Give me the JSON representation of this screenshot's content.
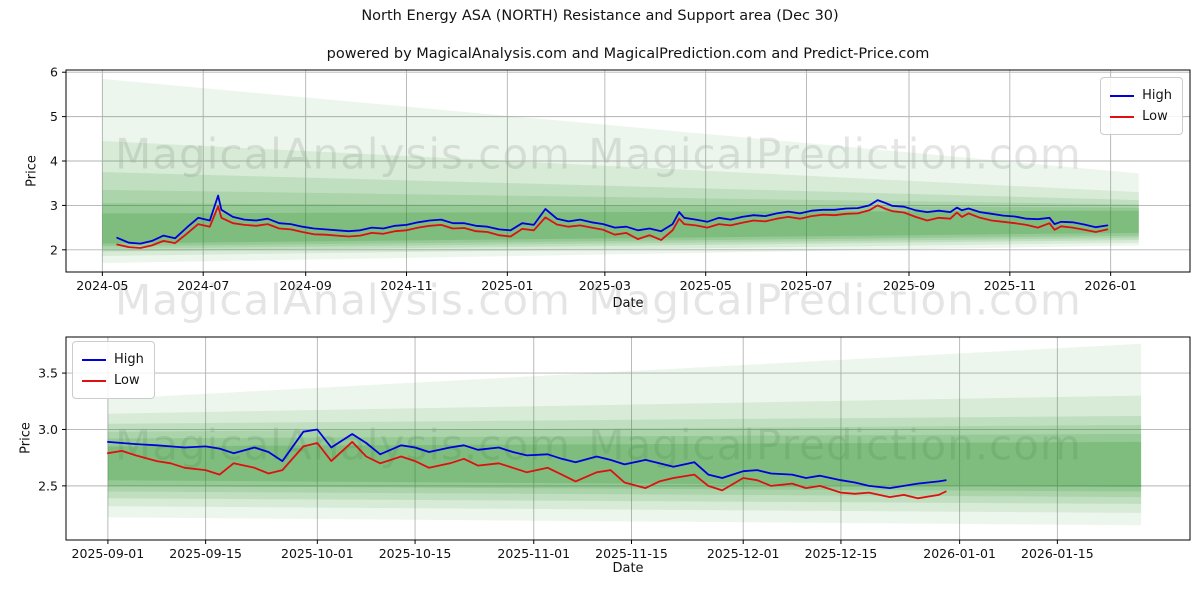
{
  "title": "North Energy ASA (NORTH) Resistance and Support area (Dec 30)",
  "subtitle": "powered by MagicalAnalysis.com and MagicalPrediction.com and Predict-Price.com",
  "watermarks": {
    "left": "MagicalAnalysis.com",
    "right": "MagicalPrediction.com"
  },
  "colors": {
    "high": "#0000dd",
    "low": "#dd1111",
    "band": "#1e8c1e",
    "grid": "#b3b3b3",
    "spine": "#000000",
    "tick_text": "#111111"
  },
  "chart_data": [
    {
      "type": "line",
      "xlabel": "Date",
      "ylabel": "Price",
      "grid": true,
      "legend_loc": "upper right",
      "xlim": [
        "2024-04-09",
        "2026-02-18"
      ],
      "ylim": [
        1.5,
        6.05
      ],
      "x_ticks": [
        {
          "v": "2024-05-01",
          "label": "2024-05"
        },
        {
          "v": "2024-07-01",
          "label": "2024-07"
        },
        {
          "v": "2024-09-01",
          "label": "2024-09"
        },
        {
          "v": "2024-11-01",
          "label": "2024-11"
        },
        {
          "v": "2025-01-01",
          "label": "2025-01"
        },
        {
          "v": "2025-03-01",
          "label": "2025-03"
        },
        {
          "v": "2025-05-01",
          "label": "2025-05"
        },
        {
          "v": "2025-07-01",
          "label": "2025-07"
        },
        {
          "v": "2025-09-01",
          "label": "2025-09"
        },
        {
          "v": "2025-11-01",
          "label": "2025-11"
        },
        {
          "v": "2026-01-01",
          "label": "2026-01"
        }
      ],
      "y_ticks": [
        {
          "v": 2,
          "label": "2"
        },
        {
          "v": 3,
          "label": "3"
        },
        {
          "v": 4,
          "label": "4"
        },
        {
          "v": 5,
          "label": "5"
        },
        {
          "v": 6,
          "label": "6"
        }
      ],
      "dates": [
        "2024-05-10",
        "2024-05-17",
        "2024-05-24",
        "2024-05-31",
        "2024-06-07",
        "2024-06-14",
        "2024-06-21",
        "2024-06-28",
        "2024-07-05",
        "2024-07-10",
        "2024-07-12",
        "2024-07-19",
        "2024-07-26",
        "2024-08-02",
        "2024-08-09",
        "2024-08-16",
        "2024-08-23",
        "2024-08-30",
        "2024-09-06",
        "2024-09-13",
        "2024-09-20",
        "2024-09-27",
        "2024-10-04",
        "2024-10-11",
        "2024-10-18",
        "2024-10-25",
        "2024-11-01",
        "2024-11-08",
        "2024-11-15",
        "2024-11-22",
        "2024-11-29",
        "2024-12-06",
        "2024-12-13",
        "2024-12-20",
        "2024-12-27",
        "2025-01-03",
        "2025-01-10",
        "2025-01-17",
        "2025-01-24",
        "2025-01-31",
        "2025-02-07",
        "2025-02-14",
        "2025-02-21",
        "2025-02-28",
        "2025-03-07",
        "2025-03-14",
        "2025-03-21",
        "2025-03-28",
        "2025-04-04",
        "2025-04-11",
        "2025-04-15",
        "2025-04-18",
        "2025-04-25",
        "2025-05-02",
        "2025-05-09",
        "2025-05-16",
        "2025-05-23",
        "2025-05-30",
        "2025-06-06",
        "2025-06-13",
        "2025-06-20",
        "2025-06-27",
        "2025-07-04",
        "2025-07-11",
        "2025-07-18",
        "2025-07-25",
        "2025-08-01",
        "2025-08-08",
        "2025-08-13",
        "2025-08-18",
        "2025-08-22",
        "2025-08-29",
        "2025-09-05",
        "2025-09-12",
        "2025-09-19",
        "2025-09-26",
        "2025-09-30",
        "2025-10-03",
        "2025-10-07",
        "2025-10-14",
        "2025-10-21",
        "2025-10-28",
        "2025-11-04",
        "2025-11-11",
        "2025-11-18",
        "2025-11-25",
        "2025-11-28",
        "2025-12-02",
        "2025-12-09",
        "2025-12-16",
        "2025-12-23",
        "2025-12-30"
      ],
      "series": [
        {
          "name": "High",
          "color_key": "high",
          "values": [
            2.27,
            2.16,
            2.14,
            2.2,
            2.32,
            2.26,
            2.5,
            2.72,
            2.66,
            3.22,
            2.9,
            2.74,
            2.68,
            2.66,
            2.7,
            2.6,
            2.58,
            2.52,
            2.48,
            2.46,
            2.44,
            2.42,
            2.44,
            2.5,
            2.48,
            2.54,
            2.56,
            2.62,
            2.66,
            2.68,
            2.6,
            2.6,
            2.54,
            2.52,
            2.46,
            2.44,
            2.6,
            2.56,
            2.92,
            2.7,
            2.64,
            2.68,
            2.62,
            2.58,
            2.5,
            2.52,
            2.44,
            2.48,
            2.42,
            2.58,
            2.85,
            2.72,
            2.68,
            2.63,
            2.72,
            2.68,
            2.74,
            2.78,
            2.76,
            2.82,
            2.86,
            2.82,
            2.88,
            2.9,
            2.9,
            2.93,
            2.94,
            3.0,
            3.12,
            3.05,
            2.99,
            2.97,
            2.89,
            2.85,
            2.88,
            2.85,
            2.95,
            2.89,
            2.93,
            2.85,
            2.81,
            2.77,
            2.75,
            2.7,
            2.69,
            2.72,
            2.58,
            2.63,
            2.62,
            2.57,
            2.51,
            2.55
          ]
        },
        {
          "name": "Low",
          "color_key": "low",
          "values": [
            2.12,
            2.06,
            2.04,
            2.1,
            2.2,
            2.15,
            2.36,
            2.58,
            2.52,
            2.98,
            2.72,
            2.6,
            2.56,
            2.54,
            2.58,
            2.48,
            2.46,
            2.4,
            2.35,
            2.34,
            2.32,
            2.3,
            2.32,
            2.38,
            2.36,
            2.42,
            2.44,
            2.5,
            2.54,
            2.56,
            2.48,
            2.49,
            2.42,
            2.4,
            2.33,
            2.3,
            2.47,
            2.44,
            2.73,
            2.57,
            2.52,
            2.55,
            2.5,
            2.45,
            2.34,
            2.38,
            2.24,
            2.33,
            2.22,
            2.44,
            2.7,
            2.58,
            2.55,
            2.5,
            2.58,
            2.55,
            2.61,
            2.66,
            2.64,
            2.7,
            2.74,
            2.7,
            2.76,
            2.79,
            2.78,
            2.81,
            2.82,
            2.89,
            3.0,
            2.92,
            2.87,
            2.84,
            2.74,
            2.66,
            2.72,
            2.7,
            2.84,
            2.74,
            2.82,
            2.72,
            2.66,
            2.63,
            2.6,
            2.56,
            2.5,
            2.6,
            2.45,
            2.53,
            2.5,
            2.45,
            2.4,
            2.46
          ]
        }
      ],
      "bands": [
        {
          "x0": "2024-05-01",
          "x1": "2026-01-18",
          "top0": 5.85,
          "bot0": 1.7,
          "top1": 3.72,
          "bot1": 2.1,
          "alpha": 0.08
        },
        {
          "x0": "2024-05-01",
          "x1": "2026-01-18",
          "top0": 4.45,
          "bot0": 1.86,
          "top1": 3.3,
          "bot1": 2.16,
          "alpha": 0.1
        },
        {
          "x0": "2024-05-01",
          "x1": "2026-01-18",
          "top0": 3.75,
          "bot0": 1.96,
          "top1": 3.12,
          "bot1": 2.22,
          "alpha": 0.12
        },
        {
          "x0": "2024-05-01",
          "x1": "2026-01-18",
          "top0": 3.35,
          "bot0": 2.02,
          "top1": 3.02,
          "bot1": 2.27,
          "alpha": 0.13
        },
        {
          "x0": "2024-05-01",
          "x1": "2026-01-18",
          "top0": 3.05,
          "bot0": 2.08,
          "top1": 2.95,
          "bot1": 2.32,
          "alpha": 0.15
        },
        {
          "x0": "2024-05-01",
          "x1": "2026-01-18",
          "top0": 2.82,
          "bot0": 2.14,
          "top1": 2.88,
          "bot1": 2.38,
          "alpha": 0.18
        }
      ]
    },
    {
      "type": "line",
      "xlabel": "Date",
      "ylabel": "Price",
      "grid": true,
      "legend_loc": "upper left",
      "xlim": [
        "2025-08-26",
        "2026-02-03"
      ],
      "ylim": [
        2.02,
        3.82
      ],
      "x_ticks": [
        {
          "v": "2025-09-01",
          "label": "2025-09-01"
        },
        {
          "v": "2025-09-15",
          "label": "2025-09-15"
        },
        {
          "v": "2025-10-01",
          "label": "2025-10-01"
        },
        {
          "v": "2025-10-15",
          "label": "2025-10-15"
        },
        {
          "v": "2025-11-01",
          "label": "2025-11-01"
        },
        {
          "v": "2025-11-15",
          "label": "2025-11-15"
        },
        {
          "v": "2025-12-01",
          "label": "2025-12-01"
        },
        {
          "v": "2025-12-15",
          "label": "2025-12-15"
        },
        {
          "v": "2026-01-01",
          "label": "2026-01-01"
        },
        {
          "v": "2026-01-15",
          "label": "2026-01-15"
        }
      ],
      "y_ticks": [
        {
          "v": 2.5,
          "label": "2.5"
        },
        {
          "v": 3.0,
          "label": "3.0"
        },
        {
          "v": 3.5,
          "label": "3.5"
        }
      ],
      "dates": [
        "2025-09-01",
        "2025-09-03",
        "2025-09-05",
        "2025-09-08",
        "2025-09-10",
        "2025-09-12",
        "2025-09-15",
        "2025-09-17",
        "2025-09-19",
        "2025-09-22",
        "2025-09-24",
        "2025-09-26",
        "2025-09-29",
        "2025-10-01",
        "2025-10-03",
        "2025-10-06",
        "2025-10-08",
        "2025-10-10",
        "2025-10-13",
        "2025-10-15",
        "2025-10-17",
        "2025-10-20",
        "2025-10-22",
        "2025-10-24",
        "2025-10-27",
        "2025-10-29",
        "2025-10-31",
        "2025-11-03",
        "2025-11-05",
        "2025-11-07",
        "2025-11-10",
        "2025-11-12",
        "2025-11-14",
        "2025-11-17",
        "2025-11-19",
        "2025-11-21",
        "2025-11-24",
        "2025-11-26",
        "2025-11-28",
        "2025-12-01",
        "2025-12-03",
        "2025-12-05",
        "2025-12-08",
        "2025-12-10",
        "2025-12-12",
        "2025-12-15",
        "2025-12-17",
        "2025-12-19",
        "2025-12-22",
        "2025-12-24",
        "2025-12-26",
        "2025-12-29",
        "2025-12-30"
      ],
      "series": [
        {
          "name": "High",
          "color_key": "high",
          "values": [
            2.89,
            2.88,
            2.87,
            2.86,
            2.85,
            2.84,
            2.85,
            2.83,
            2.79,
            2.84,
            2.8,
            2.72,
            2.98,
            3.0,
            2.84,
            2.96,
            2.88,
            2.78,
            2.86,
            2.84,
            2.8,
            2.84,
            2.86,
            2.82,
            2.84,
            2.8,
            2.77,
            2.78,
            2.74,
            2.71,
            2.76,
            2.73,
            2.69,
            2.73,
            2.7,
            2.67,
            2.71,
            2.6,
            2.57,
            2.63,
            2.64,
            2.61,
            2.6,
            2.57,
            2.59,
            2.55,
            2.53,
            2.5,
            2.48,
            2.5,
            2.52,
            2.54,
            2.55
          ]
        },
        {
          "name": "Low",
          "color_key": "low",
          "values": [
            2.79,
            2.81,
            2.77,
            2.72,
            2.7,
            2.66,
            2.64,
            2.6,
            2.7,
            2.66,
            2.61,
            2.64,
            2.85,
            2.88,
            2.72,
            2.89,
            2.76,
            2.7,
            2.76,
            2.72,
            2.66,
            2.7,
            2.74,
            2.68,
            2.7,
            2.66,
            2.62,
            2.66,
            2.6,
            2.54,
            2.62,
            2.64,
            2.53,
            2.48,
            2.54,
            2.57,
            2.6,
            2.5,
            2.46,
            2.57,
            2.55,
            2.5,
            2.52,
            2.48,
            2.5,
            2.44,
            2.43,
            2.44,
            2.4,
            2.42,
            2.39,
            2.42,
            2.45
          ]
        }
      ],
      "bands": [
        {
          "x0": "2025-09-01",
          "x1": "2026-01-27",
          "top0": 3.27,
          "bot0": 2.22,
          "top1": 3.76,
          "bot1": 2.15,
          "alpha": 0.08
        },
        {
          "x0": "2025-09-01",
          "x1": "2026-01-27",
          "top0": 3.14,
          "bot0": 2.32,
          "top1": 3.3,
          "bot1": 2.26,
          "alpha": 0.1
        },
        {
          "x0": "2025-09-01",
          "x1": "2026-01-27",
          "top0": 3.05,
          "bot0": 2.39,
          "top1": 3.12,
          "bot1": 2.34,
          "alpha": 0.12
        },
        {
          "x0": "2025-09-01",
          "x1": "2026-01-27",
          "top0": 2.98,
          "bot0": 2.45,
          "top1": 3.04,
          "bot1": 2.4,
          "alpha": 0.13
        },
        {
          "x0": "2025-09-01",
          "x1": "2026-01-27",
          "top0": 2.92,
          "bot0": 2.5,
          "top1": 2.96,
          "bot1": 2.45,
          "alpha": 0.15
        },
        {
          "x0": "2025-09-01",
          "x1": "2026-01-27",
          "top0": 2.85,
          "bot0": 2.55,
          "top1": 2.89,
          "bot1": 2.49,
          "alpha": 0.18
        }
      ]
    }
  ]
}
